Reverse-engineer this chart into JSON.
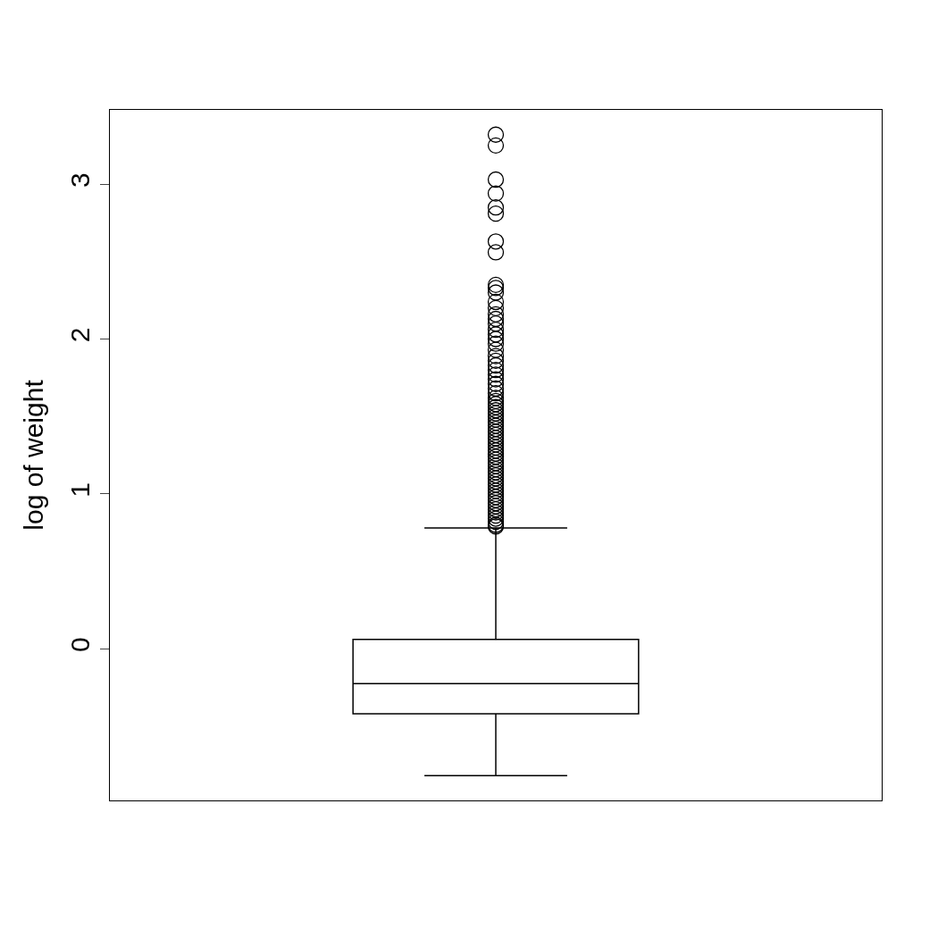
{
  "chart_data": {
    "type": "box",
    "ylabel": "log of weight",
    "categories": [
      null
    ],
    "boxes": [
      {
        "low": -0.82,
        "q1": -0.42,
        "median": -0.225,
        "q3": 0.06,
        "high": 0.78,
        "outliers": [
          0.79,
          0.8,
          0.82,
          0.84,
          0.86,
          0.88,
          0.9,
          0.92,
          0.94,
          0.96,
          0.98,
          1.0,
          1.02,
          1.04,
          1.06,
          1.08,
          1.1,
          1.12,
          1.14,
          1.16,
          1.18,
          1.2,
          1.22,
          1.24,
          1.26,
          1.28,
          1.3,
          1.32,
          1.34,
          1.36,
          1.38,
          1.4,
          1.42,
          1.44,
          1.46,
          1.48,
          1.5,
          1.52,
          1.54,
          1.56,
          1.58,
          1.6,
          1.62,
          1.65,
          1.68,
          1.71,
          1.74,
          1.77,
          1.8,
          1.83,
          1.86,
          1.89,
          1.93,
          1.97,
          2.0,
          2.03,
          2.06,
          2.1,
          2.13,
          2.16,
          2.2,
          2.24,
          2.3,
          2.33,
          2.35,
          2.56,
          2.63,
          2.81,
          2.85,
          2.94,
          3.03,
          3.25,
          3.32
        ]
      }
    ],
    "color": "#000000",
    "marker": "circle",
    "ylim": [
      -0.98,
      3.48
    ],
    "yticks": [
      0,
      1,
      2,
      3
    ],
    "tick_labels": "y",
    "grid": false
  }
}
